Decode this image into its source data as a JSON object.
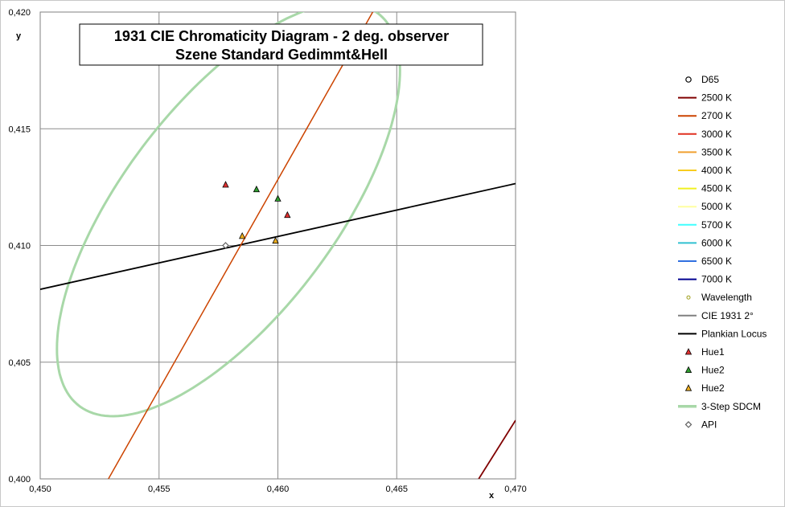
{
  "chart_data": {
    "type": "scatter",
    "title": "1931 CIE Chromaticity  Diagram  - 2 deg. observer",
    "subtitle": "Szene Standard Gedimmt&Hell",
    "xlabel": "x",
    "ylabel": "y",
    "xlim": [
      0.45,
      0.47
    ],
    "ylim": [
      0.4,
      0.42
    ],
    "x_ticks": [
      "0,450",
      "0,455",
      "0,460",
      "0,465",
      "0,470"
    ],
    "y_ticks": [
      "0,400",
      "0,405",
      "0,410",
      "0,415",
      "0,420"
    ],
    "grid": true,
    "legend_position": "right",
    "legend": [
      {
        "label": "D65",
        "kind": "circle",
        "color": "#000000"
      },
      {
        "label": "2500 K",
        "kind": "line",
        "color": "#800000"
      },
      {
        "label": "2700 K",
        "kind": "line",
        "color": "#cc4400"
      },
      {
        "label": "3000 K",
        "kind": "line",
        "color": "#e03020"
      },
      {
        "label": "3500 K",
        "kind": "line",
        "color": "#f0a030"
      },
      {
        "label": "4000 K",
        "kind": "line",
        "color": "#f8cc20"
      },
      {
        "label": "4500 K",
        "kind": "line",
        "color": "#f0f020"
      },
      {
        "label": "5000 K",
        "kind": "line",
        "color": "#ffffa0"
      },
      {
        "label": "5700 K",
        "kind": "line",
        "color": "#40ffff"
      },
      {
        "label": "6000 K",
        "kind": "line",
        "color": "#30c0d0"
      },
      {
        "label": "6500 K",
        "kind": "line",
        "color": "#3070e0"
      },
      {
        "label": "7000 K",
        "kind": "line",
        "color": "#000090"
      },
      {
        "label": "Wavelength",
        "kind": "smallcircle",
        "color": "#a0a020"
      },
      {
        "label": "CIE 1931 2°",
        "kind": "line",
        "color": "#808080"
      },
      {
        "label": "Plankian Locus",
        "kind": "line",
        "color": "#000000"
      },
      {
        "label": "Hue1",
        "kind": "triangle",
        "color": "#e03030"
      },
      {
        "label": "Hue2",
        "kind": "triangle",
        "color": "#30a030"
      },
      {
        "label": "Hue2",
        "kind": "triangle",
        "color": "#f0b020"
      },
      {
        "label": "3-Step SDCM",
        "kind": "thickline",
        "color": "#a8d8a8"
      },
      {
        "label": "API",
        "kind": "diamond",
        "color": "#606060"
      }
    ],
    "lines": [
      {
        "name": "Plankian Locus",
        "color": "#000000",
        "width": 1.8,
        "points": [
          [
            0.45,
            0.40812
          ],
          [
            0.47,
            0.41265
          ]
        ]
      },
      {
        "name": "2700 K",
        "color": "#cc4400",
        "width": 1.5,
        "points": [
          [
            0.45287,
            0.4
          ],
          [
            0.46399,
            0.42
          ]
        ]
      },
      {
        "name": "2500 K",
        "color": "#800000",
        "width": 1.8,
        "points": [
          [
            0.46845,
            0.4
          ],
          [
            0.47,
            0.40251
          ]
        ]
      }
    ],
    "sdcm_ellipse": {
      "name": "3-Step SDCM",
      "color": "#a8d8a8",
      "center": [
        0.45792,
        0.41154
      ],
      "semi_major": 0.0105,
      "semi_minor": 0.0045,
      "angle_deg": 53.5
    },
    "points": [
      {
        "name": "Hue1",
        "marker": "triangle",
        "color": "#e03030",
        "data": [
          [
            0.4578,
            0.4126
          ],
          [
            0.4604,
            0.4113
          ]
        ]
      },
      {
        "name": "Hue2",
        "marker": "triangle",
        "color": "#30a030",
        "data": [
          [
            0.4591,
            0.4124
          ],
          [
            0.46,
            0.412
          ]
        ]
      },
      {
        "name": "Hue2",
        "marker": "triangle",
        "color": "#f0b020",
        "data": [
          [
            0.4585,
            0.4104
          ],
          [
            0.4599,
            0.4102
          ]
        ]
      },
      {
        "name": "API",
        "marker": "diamond",
        "color": "#606060",
        "data": [
          [
            0.4578,
            0.41
          ]
        ]
      }
    ]
  }
}
